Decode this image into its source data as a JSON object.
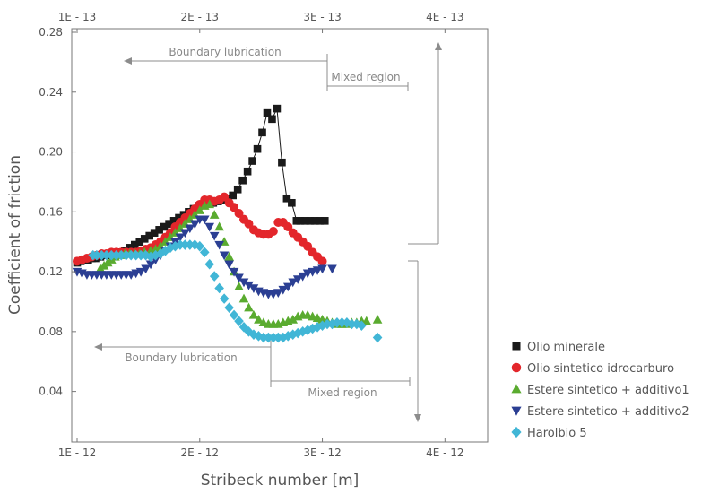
{
  "chart_data": {
    "type": "scatter",
    "ylabel": "Coefficient of friction",
    "xlabel": "Stribeck number [m]",
    "ylim": [
      0.02,
      0.28
    ],
    "xlim": [
      1.0,
      4.1
    ],
    "yticks": [
      {
        "value": 0.04,
        "label": "0.04"
      },
      {
        "value": 0.08,
        "label": "0.08"
      },
      {
        "value": 0.12,
        "label": "0.12"
      },
      {
        "value": 0.16,
        "label": "0.16"
      },
      {
        "value": 0.2,
        "label": "0.20"
      },
      {
        "value": 0.24,
        "label": "0.24"
      },
      {
        "value": 0.28,
        "label": "0.28"
      }
    ],
    "xticks_bottom": [
      {
        "value": 1,
        "label": "1E - 12"
      },
      {
        "value": 2,
        "label": "2E - 12"
      },
      {
        "value": 3,
        "label": "3E - 12"
      },
      {
        "value": 4,
        "label": "4E - 12"
      }
    ],
    "xticks_top": [
      {
        "value": 1,
        "label": "1E - 13"
      },
      {
        "value": 2,
        "label": "2E - 13"
      },
      {
        "value": 3,
        "label": "3E - 13"
      },
      {
        "value": 4,
        "label": "4E - 13"
      }
    ],
    "grid": false,
    "legend_position": "bottom-right",
    "annotations": {
      "boundary_top": "Boundary lubrication",
      "mixed_top": "Mixed region",
      "boundary_bottom": "Boundary lubrication",
      "mixed_bottom": "Mixed region"
    },
    "series": [
      {
        "name": "Olio minerale",
        "color": "#1a1a1a",
        "marker": "square",
        "connected": true,
        "x": [
          1.0,
          1.03,
          1.06,
          1.09,
          1.12,
          1.15,
          1.19,
          1.23,
          1.27,
          1.31,
          1.35,
          1.39,
          1.43,
          1.47,
          1.51,
          1.55,
          1.59,
          1.63,
          1.67,
          1.71,
          1.75,
          1.79,
          1.83,
          1.87,
          1.91,
          1.95,
          1.99,
          2.03,
          2.07,
          2.11,
          2.15,
          2.19,
          2.23,
          2.27,
          2.31,
          2.35,
          2.39,
          2.43,
          2.47,
          2.51,
          2.55,
          2.59,
          2.63,
          2.67,
          2.71,
          2.75,
          2.79,
          2.82,
          2.86,
          2.9,
          2.94,
          2.98,
          3.02
        ],
        "y": [
          0.126,
          0.127,
          0.128,
          0.128,
          0.129,
          0.129,
          0.13,
          0.131,
          0.131,
          0.132,
          0.133,
          0.134,
          0.136,
          0.138,
          0.14,
          0.142,
          0.144,
          0.146,
          0.148,
          0.15,
          0.152,
          0.154,
          0.156,
          0.158,
          0.16,
          0.162,
          0.164,
          0.165,
          0.166,
          0.166,
          0.167,
          0.168,
          0.169,
          0.171,
          0.175,
          0.181,
          0.187,
          0.194,
          0.202,
          0.213,
          0.226,
          0.222,
          0.229,
          0.193,
          0.169,
          0.166,
          0.154,
          0.154,
          0.154,
          0.154,
          0.154,
          0.154,
          0.154
        ]
      },
      {
        "name": "Olio sintetico idrocarburo",
        "color": "#e3262b",
        "marker": "circle",
        "connected": false,
        "x": [
          1.0,
          1.04,
          1.08,
          1.12,
          1.16,
          1.2,
          1.24,
          1.28,
          1.32,
          1.36,
          1.4,
          1.44,
          1.48,
          1.52,
          1.56,
          1.6,
          1.64,
          1.68,
          1.72,
          1.76,
          1.8,
          1.84,
          1.88,
          1.92,
          1.96,
          2.0,
          2.04,
          2.08,
          2.12,
          2.16,
          2.2,
          2.24,
          2.28,
          2.32,
          2.36,
          2.4,
          2.44,
          2.48,
          2.52,
          2.56,
          2.6,
          2.64,
          2.68,
          2.72,
          2.76,
          2.8,
          2.84,
          2.88,
          2.92,
          2.96,
          3.0
        ],
        "y": [
          0.127,
          0.128,
          0.129,
          0.13,
          0.131,
          0.132,
          0.132,
          0.133,
          0.133,
          0.133,
          0.133,
          0.133,
          0.133,
          0.134,
          0.135,
          0.136,
          0.138,
          0.14,
          0.143,
          0.146,
          0.15,
          0.153,
          0.156,
          0.159,
          0.162,
          0.165,
          0.168,
          0.168,
          0.167,
          0.168,
          0.17,
          0.166,
          0.163,
          0.159,
          0.155,
          0.152,
          0.148,
          0.146,
          0.145,
          0.145,
          0.147,
          0.153,
          0.153,
          0.15,
          0.146,
          0.143,
          0.14,
          0.137,
          0.133,
          0.13,
          0.127
        ]
      },
      {
        "name": "Estere sintetico + additivo1",
        "color": "#5aab2f",
        "marker": "triangle-up",
        "connected": false,
        "x": [
          1.19,
          1.22,
          1.25,
          1.28,
          1.31,
          1.35,
          1.39,
          1.43,
          1.47,
          1.51,
          1.55,
          1.6,
          1.64,
          1.68,
          1.72,
          1.76,
          1.8,
          1.84,
          1.88,
          1.92,
          1.96,
          2.0,
          2.04,
          2.08,
          2.12,
          2.16,
          2.2,
          2.24,
          2.28,
          2.32,
          2.36,
          2.4,
          2.44,
          2.48,
          2.52,
          2.56,
          2.6,
          2.64,
          2.68,
          2.72,
          2.76,
          2.8,
          2.84,
          2.88,
          2.92,
          2.96,
          3.0,
          3.04,
          3.08,
          3.12,
          3.16,
          3.2,
          3.24,
          3.28,
          3.32,
          3.36,
          3.45
        ],
        "y": [
          0.122,
          0.124,
          0.126,
          0.128,
          0.13,
          0.131,
          0.132,
          0.132,
          0.132,
          0.132,
          0.133,
          0.134,
          0.135,
          0.137,
          0.14,
          0.143,
          0.146,
          0.149,
          0.152,
          0.155,
          0.158,
          0.161,
          0.164,
          0.165,
          0.158,
          0.15,
          0.14,
          0.13,
          0.12,
          0.11,
          0.102,
          0.096,
          0.091,
          0.088,
          0.086,
          0.085,
          0.085,
          0.085,
          0.086,
          0.087,
          0.088,
          0.09,
          0.091,
          0.091,
          0.09,
          0.089,
          0.088,
          0.087,
          0.086,
          0.085,
          0.085,
          0.085,
          0.086,
          0.086,
          0.087,
          0.087,
          0.088
        ]
      },
      {
        "name": "Estere sintetico + additivo2",
        "color": "#2b3f93",
        "marker": "triangle-down",
        "connected": false,
        "x": [
          1.0,
          1.04,
          1.08,
          1.12,
          1.16,
          1.2,
          1.24,
          1.28,
          1.32,
          1.36,
          1.4,
          1.44,
          1.48,
          1.52,
          1.56,
          1.6,
          1.64,
          1.68,
          1.72,
          1.76,
          1.8,
          1.84,
          1.88,
          1.92,
          1.96,
          2.0,
          2.04,
          2.08,
          2.12,
          2.16,
          2.2,
          2.24,
          2.28,
          2.32,
          2.36,
          2.4,
          2.44,
          2.48,
          2.52,
          2.56,
          2.6,
          2.64,
          2.68,
          2.72,
          2.76,
          2.8,
          2.84,
          2.88,
          2.92,
          2.96,
          3.0,
          3.08
        ],
        "y": [
          0.12,
          0.119,
          0.118,
          0.118,
          0.118,
          0.118,
          0.118,
          0.118,
          0.118,
          0.118,
          0.118,
          0.118,
          0.119,
          0.12,
          0.122,
          0.125,
          0.128,
          0.131,
          0.134,
          0.137,
          0.14,
          0.143,
          0.146,
          0.149,
          0.152,
          0.155,
          0.155,
          0.15,
          0.144,
          0.138,
          0.131,
          0.125,
          0.12,
          0.116,
          0.113,
          0.111,
          0.109,
          0.107,
          0.106,
          0.105,
          0.105,
          0.106,
          0.108,
          0.11,
          0.113,
          0.115,
          0.117,
          0.119,
          0.12,
          0.121,
          0.122,
          0.122
        ]
      },
      {
        "name": "Harolbio 5",
        "color": "#41b6d6",
        "marker": "diamond",
        "connected": false,
        "x": [
          1.13,
          1.16,
          1.2,
          1.24,
          1.28,
          1.32,
          1.36,
          1.4,
          1.44,
          1.48,
          1.52,
          1.56,
          1.6,
          1.64,
          1.68,
          1.72,
          1.76,
          1.8,
          1.84,
          1.88,
          1.92,
          1.96,
          2.0,
          2.04,
          2.08,
          2.12,
          2.16,
          2.2,
          2.24,
          2.28,
          2.32,
          2.36,
          2.4,
          2.44,
          2.48,
          2.52,
          2.56,
          2.6,
          2.64,
          2.68,
          2.72,
          2.76,
          2.8,
          2.84,
          2.88,
          2.92,
          2.96,
          3.0,
          3.04,
          3.08,
          3.12,
          3.16,
          3.2,
          3.24,
          3.28,
          3.32,
          3.45
        ],
        "y": [
          0.131,
          0.131,
          0.131,
          0.131,
          0.131,
          0.131,
          0.131,
          0.131,
          0.131,
          0.131,
          0.131,
          0.131,
          0.13,
          0.131,
          0.132,
          0.134,
          0.136,
          0.137,
          0.138,
          0.138,
          0.138,
          0.138,
          0.137,
          0.133,
          0.125,
          0.117,
          0.109,
          0.102,
          0.096,
          0.091,
          0.087,
          0.083,
          0.08,
          0.078,
          0.077,
          0.076,
          0.076,
          0.076,
          0.076,
          0.076,
          0.077,
          0.078,
          0.079,
          0.08,
          0.081,
          0.082,
          0.083,
          0.084,
          0.085,
          0.085,
          0.086,
          0.086,
          0.086,
          0.085,
          0.085,
          0.084,
          0.076
        ]
      }
    ]
  }
}
